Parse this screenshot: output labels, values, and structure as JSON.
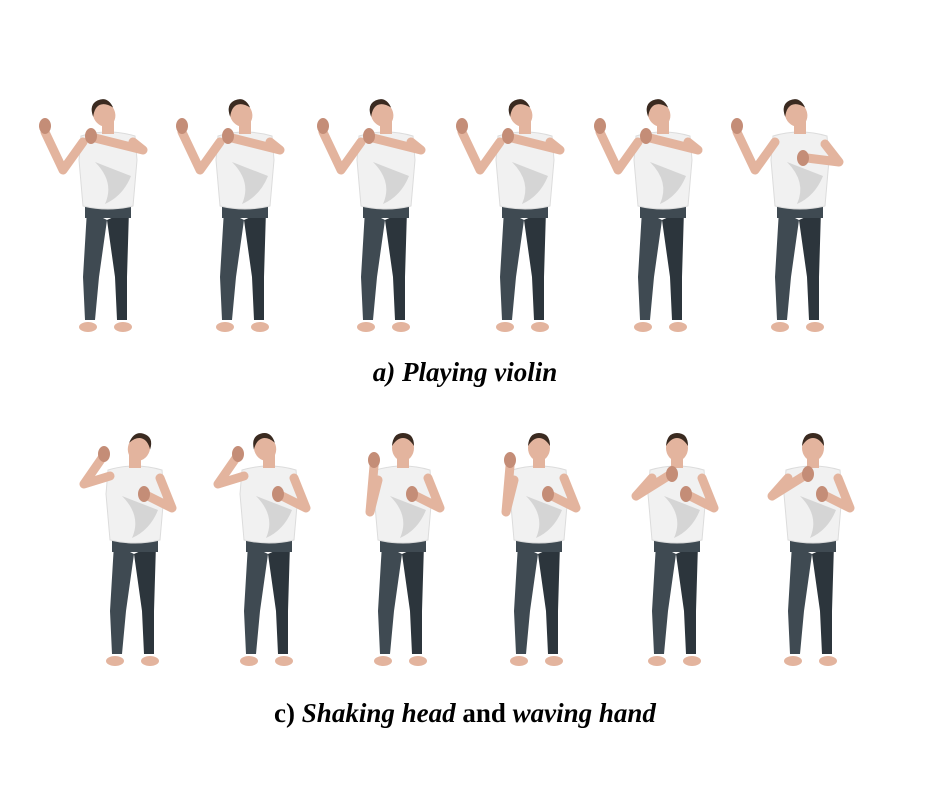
{
  "captions": {
    "a": {
      "text": "a) Playing violin"
    },
    "c": {
      "prefix": "c) ",
      "part1": "Shaking head",
      "connector": " and ",
      "part2": "waving hand"
    }
  },
  "colors": {
    "skin": "#e3b49e",
    "skin_shadow": "#c48d77",
    "shirt": "#f1f1f1",
    "shirt_shadow": "#c9c9c9",
    "jeans": "#3f4a52",
    "jeans_dark": "#2c353c",
    "hair": "#3a2a20"
  },
  "rows": {
    "a": {
      "label": "Playing violin",
      "figure_count": 6
    },
    "c": {
      "label": "Shaking head and waving hand",
      "figure_count": 6
    }
  }
}
